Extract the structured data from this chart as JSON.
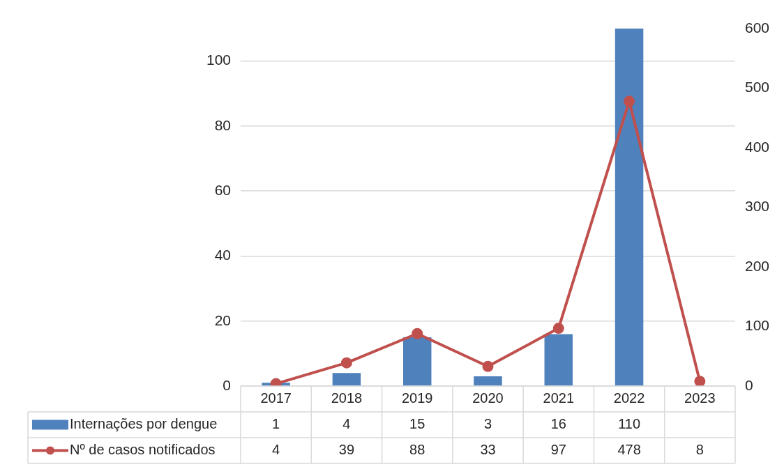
{
  "chart_data": {
    "type": "bar",
    "categories": [
      "2017",
      "2018",
      "2019",
      "2020",
      "2021",
      "2022",
      "2023"
    ],
    "series": [
      {
        "name": "Internações por dengue",
        "color": "#4f81bd",
        "values": [
          1,
          4,
          15,
          3,
          16,
          110,
          null
        ]
      },
      {
        "name": "Nº de casos notificados",
        "type": "line",
        "axis": "y2",
        "color": "#c0504d",
        "values": [
          4,
          39,
          88,
          33,
          97,
          478,
          8
        ]
      }
    ],
    "ylim": [
      0,
      110
    ],
    "yticks": [
      0,
      20,
      40,
      60,
      80,
      100
    ],
    "y2lim": [
      0,
      600
    ],
    "y2ticks": [
      0,
      100,
      200,
      300,
      400,
      500,
      600
    ],
    "grid": "y",
    "legend": "bottom",
    "marker": "circle",
    "data_labels": true
  }
}
